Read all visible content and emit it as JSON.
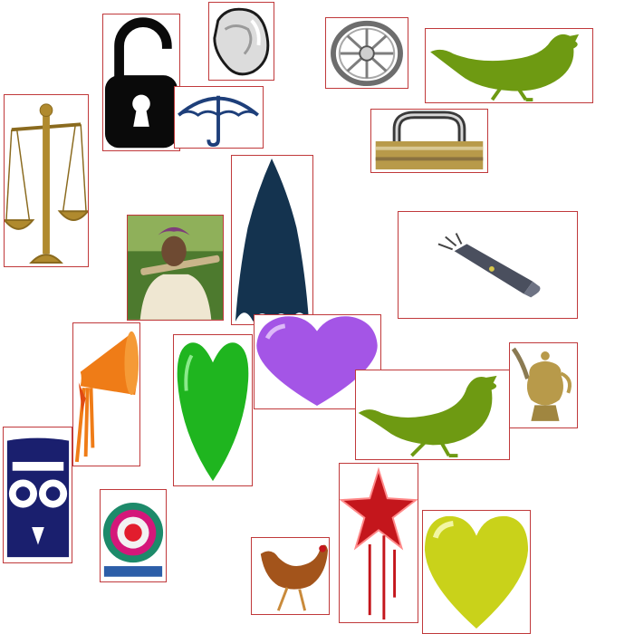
{
  "canvas": {
    "background": "#ffffff",
    "frame_color": "#c0393b"
  },
  "colors": {
    "lock_black": "#0a0a0a",
    "umbrella_blue": "#1e3f7a",
    "hen_green": "#6e9a12",
    "umbrella_navy": "#14334f",
    "heart_green": "#1fb51f",
    "heart_purple": "#a455e6",
    "heart_yellow": "#c9d21a",
    "trumpet_orange": "#ef7c17",
    "owl_navy": "#1a1f6e",
    "star_red": "#c4161c",
    "brass": "#b89a4a"
  },
  "tiles": [
    {
      "icon": "unlocked-padlock-icon"
    },
    {
      "icon": "rock-stone-icon"
    },
    {
      "icon": "umbrella-icon"
    },
    {
      "icon": "cart-wheel-icon"
    },
    {
      "icon": "hen-silhouette-icon"
    },
    {
      "icon": "padlock-icon"
    },
    {
      "icon": "weighing-scale-icon"
    },
    {
      "icon": "farmer-photo"
    },
    {
      "icon": "closed-umbrella-icon"
    },
    {
      "icon": "flashlight-icon"
    },
    {
      "icon": "trumpet-icon"
    },
    {
      "icon": "green-heart-icon"
    },
    {
      "icon": "purple-heart-icon"
    },
    {
      "icon": "hen-silhouette-icon"
    },
    {
      "icon": "kettle-icon"
    },
    {
      "icon": "owl-icon"
    },
    {
      "icon": "round-basket-icon"
    },
    {
      "icon": "hen-photo"
    },
    {
      "icon": "star-icon"
    },
    {
      "icon": "yellow-heart-icon"
    }
  ]
}
